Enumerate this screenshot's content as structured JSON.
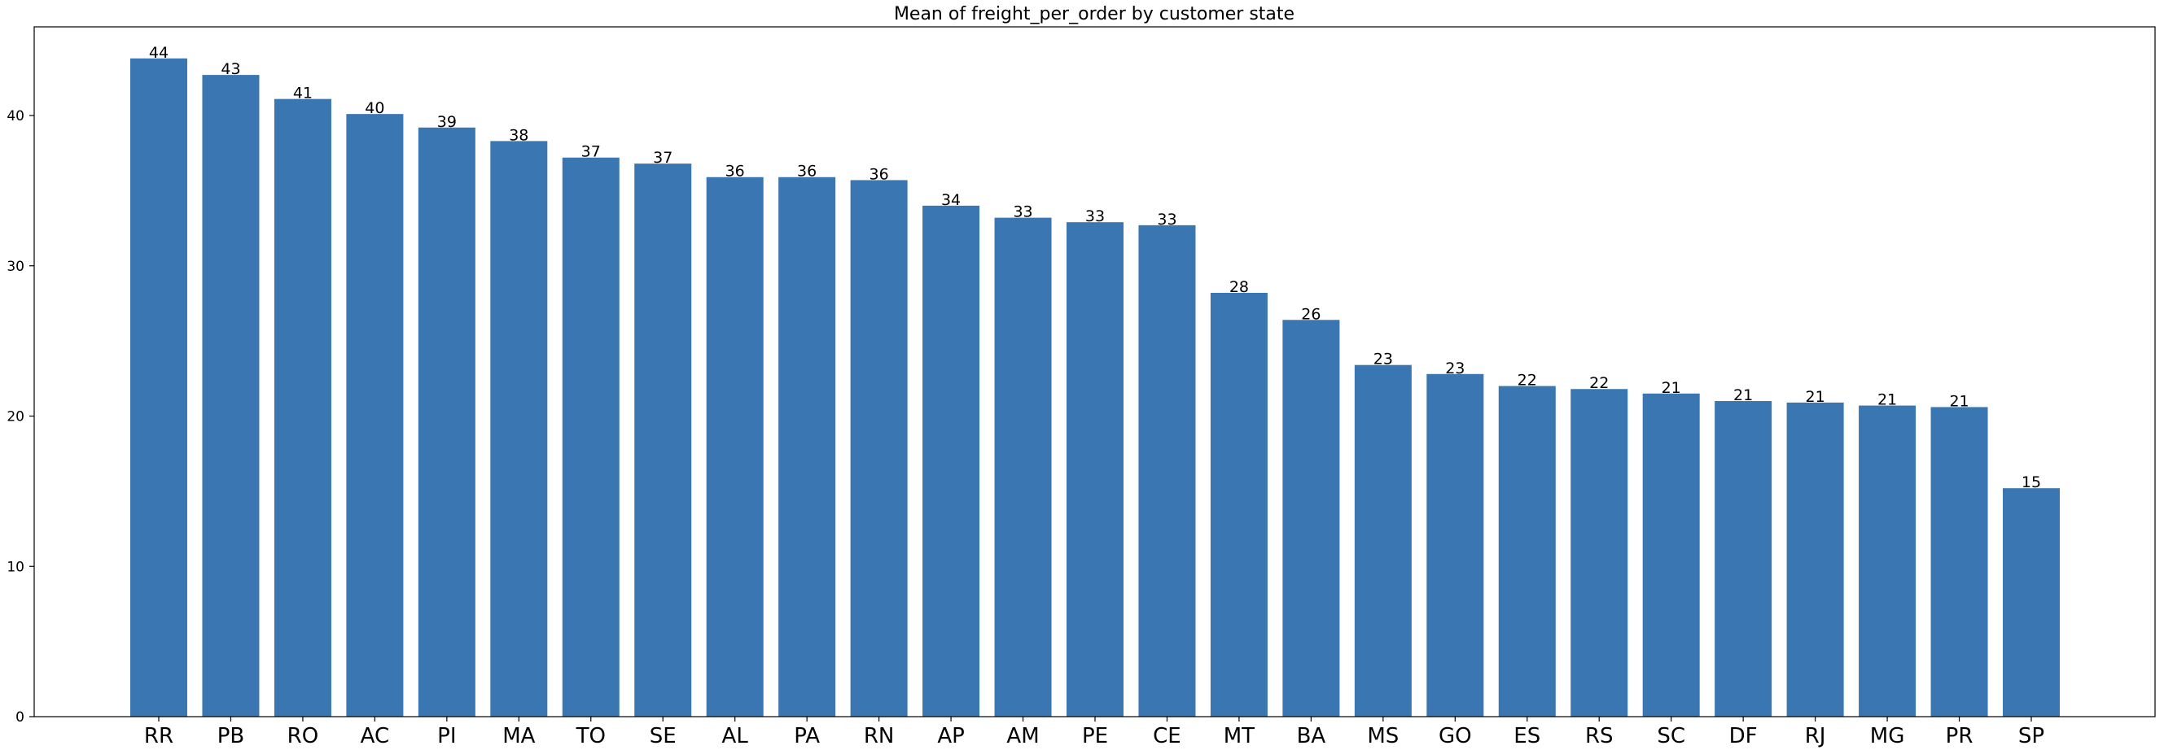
{
  "chart_data": {
    "type": "bar",
    "title": "Mean of freight_per_order by customer state",
    "xlabel": "",
    "ylabel": "",
    "categories": [
      "RR",
      "PB",
      "RO",
      "AC",
      "PI",
      "MA",
      "TO",
      "SE",
      "AL",
      "PA",
      "RN",
      "AP",
      "AM",
      "PE",
      "CE",
      "MT",
      "BA",
      "MS",
      "GO",
      "ES",
      "RS",
      "SC",
      "DF",
      "RJ",
      "MG",
      "PR",
      "SP"
    ],
    "values": [
      43.8,
      42.7,
      41.1,
      40.1,
      39.2,
      38.3,
      37.2,
      36.8,
      35.9,
      35.9,
      35.7,
      34.0,
      33.2,
      32.9,
      32.7,
      28.2,
      26.4,
      23.4,
      22.8,
      22.0,
      21.8,
      21.5,
      21.0,
      20.9,
      20.7,
      20.6,
      15.2
    ],
    "data_labels": [
      "44",
      "43",
      "41",
      "40",
      "39",
      "38",
      "37",
      "37",
      "36",
      "36",
      "36",
      "34",
      "33",
      "33",
      "33",
      "28",
      "26",
      "23",
      "23",
      "22",
      "22",
      "21",
      "21",
      "21",
      "21",
      "21",
      "15"
    ],
    "ylim": [
      0,
      45.9
    ],
    "yticks": [
      0,
      10,
      20,
      30,
      40
    ],
    "grid": false,
    "color": "#3a76b1"
  }
}
